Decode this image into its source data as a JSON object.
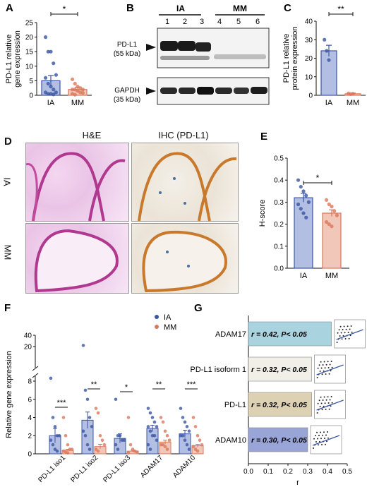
{
  "panel_letters": [
    "A",
    "B",
    "C",
    "D",
    "E",
    "F",
    "G"
  ],
  "colors": {
    "ia_fill": "#b3bfe2",
    "ia_stroke": "#3a55a3",
    "mm_fill": "#f0c7b8",
    "mm_stroke": "#d9785b",
    "he": "#b0388f",
    "ihc": "#c8792c"
  },
  "chart_data": [
    {
      "panel": "A",
      "type": "bar",
      "categories": [
        "IA",
        "MM"
      ],
      "values": [
        5.0,
        2.0
      ],
      "errors": [
        1.8,
        0.7
      ],
      "points": {
        "IA": [
          20,
          15,
          15,
          11,
          7,
          6,
          4,
          3,
          2,
          1,
          1,
          0.5,
          0.5,
          0.3
        ],
        "MM": [
          5.5,
          4,
          3,
          2.5,
          2,
          2,
          2,
          1.5,
          1,
          0.8,
          0.5,
          0.2
        ]
      },
      "ylabel": "PD-L1 relative\ngene expression",
      "ylim": [
        0,
        25
      ],
      "yticks": [
        "0",
        "5",
        "10",
        "15",
        "20",
        "25"
      ],
      "significance": "*"
    },
    {
      "panel": "C",
      "type": "bar",
      "categories": [
        "IA",
        "MM"
      ],
      "values": [
        24,
        0.8
      ],
      "errors": [
        3,
        0.4
      ],
      "points": {
        "IA": [
          30,
          24,
          19
        ],
        "MM": [
          1,
          0.6,
          0.8
        ]
      },
      "ylabel": "PD-L1 relative\nprotein expression",
      "ylim": [
        0,
        40
      ],
      "yticks": [
        "0",
        "10",
        "20",
        "30",
        "40"
      ],
      "significance": "**"
    },
    {
      "panel": "E",
      "type": "bar",
      "categories": [
        "IA",
        "MM"
      ],
      "values": [
        0.32,
        0.25
      ],
      "errors": [
        0.02,
        0.015
      ],
      "points": {
        "IA": [
          0.4,
          0.37,
          0.35,
          0.33,
          0.3,
          0.29,
          0.27,
          0.25,
          0.23
        ],
        "MM": [
          0.31,
          0.29,
          0.28,
          0.26,
          0.24,
          0.21,
          0.2,
          0.19
        ]
      },
      "ylabel": "H-score",
      "ylim": [
        0,
        0.5
      ],
      "yticks": [
        "0.0",
        "0.1",
        "0.2",
        "0.3",
        "0.4",
        "0.5"
      ],
      "significance": "*"
    },
    {
      "panel": "F",
      "type": "bar",
      "categories": [
        "PD-L1 iso1",
        "PD-L1 iso2",
        "PD-L1 iso3",
        "ADAM17",
        "ADAM10"
      ],
      "series": [
        {
          "name": "IA",
          "values": [
            2.0,
            3.7,
            1.7,
            2.8,
            2.2
          ],
          "errors": [
            0.8,
            0.9,
            0.5,
            0.35,
            0.4
          ]
        },
        {
          "name": "MM",
          "values": [
            0.4,
            0.8,
            0.3,
            1.3,
            0.9
          ],
          "errors": [
            0.1,
            0.25,
            0.1,
            0.2,
            0.15
          ]
        }
      ],
      "points": {
        "IA": [
          [
            9,
            4,
            3,
            2,
            2,
            1.5,
            1,
            0.5,
            0.3
          ],
          [
            22,
            7,
            6,
            4,
            3,
            2.5,
            2,
            1,
            0.5
          ],
          [
            6,
            2,
            2,
            1.5,
            1.5,
            1,
            0.5
          ],
          [
            5,
            4.5,
            4,
            3.5,
            3,
            3,
            2.5,
            2,
            2,
            1.5,
            1,
            0.5
          ],
          [
            5,
            4,
            3.5,
            3,
            2.5,
            2,
            2,
            1.5,
            1,
            0.5
          ]
        ],
        "MM": [
          [
            4,
            2,
            1,
            0.5,
            0.5,
            0.3,
            0.2,
            0.1
          ],
          [
            5,
            4.5,
            2,
            1.5,
            1,
            0.5,
            0.3
          ],
          [
            4,
            1,
            0.5,
            0.3,
            0.2,
            0.1
          ],
          [
            4,
            3.5,
            2.5,
            2,
            1.5,
            1,
            1,
            0.8,
            0.5
          ],
          [
            4,
            3,
            2,
            1.5,
            1,
            0.8,
            0.5,
            0.3
          ]
        ]
      },
      "ylabel": "Relative gene expression",
      "yticks_low": [
        "0",
        "2",
        "4",
        "6",
        "8"
      ],
      "yticks_high": [
        "20",
        "40"
      ],
      "significance": [
        "***",
        "**",
        "*",
        "**",
        "***"
      ],
      "legend": [
        "IA",
        "MM"
      ]
    },
    {
      "panel": "G",
      "type": "bar",
      "orientation": "horizontal",
      "categories": [
        "ADAM17",
        "PD-L1 isoform 1",
        "PD-L1",
        "ADAM10"
      ],
      "values": [
        0.42,
        0.32,
        0.32,
        0.3
      ],
      "annotations": [
        "r = 0.42, P< 0.05",
        "r = 0.32, P< 0.05",
        "r = 0.32, P< 0.05",
        "r = 0.30, P< 0.05"
      ],
      "colors": [
        "#a9d3df",
        "#f1efe8",
        "#ddd1b4",
        "#98a5d6"
      ],
      "xlabel": "r",
      "xlim": [
        0,
        0.5
      ],
      "xticks": [
        "0.0",
        "0.1",
        "0.2",
        "0.3",
        "0.4",
        "0.5"
      ]
    }
  ],
  "blot": {
    "groups": [
      "IA",
      "MM"
    ],
    "lanes": [
      "1",
      "2",
      "3",
      "4",
      "5",
      "6"
    ],
    "rows": [
      {
        "label": "PD-L1",
        "sub": "(55 kDa)"
      },
      {
        "label": "GAPDH",
        "sub": "(35 kDa)"
      }
    ]
  },
  "histology": {
    "columns": [
      "H&E",
      "IHC (PD-L1)"
    ],
    "rows": [
      "IA",
      "MM"
    ]
  }
}
